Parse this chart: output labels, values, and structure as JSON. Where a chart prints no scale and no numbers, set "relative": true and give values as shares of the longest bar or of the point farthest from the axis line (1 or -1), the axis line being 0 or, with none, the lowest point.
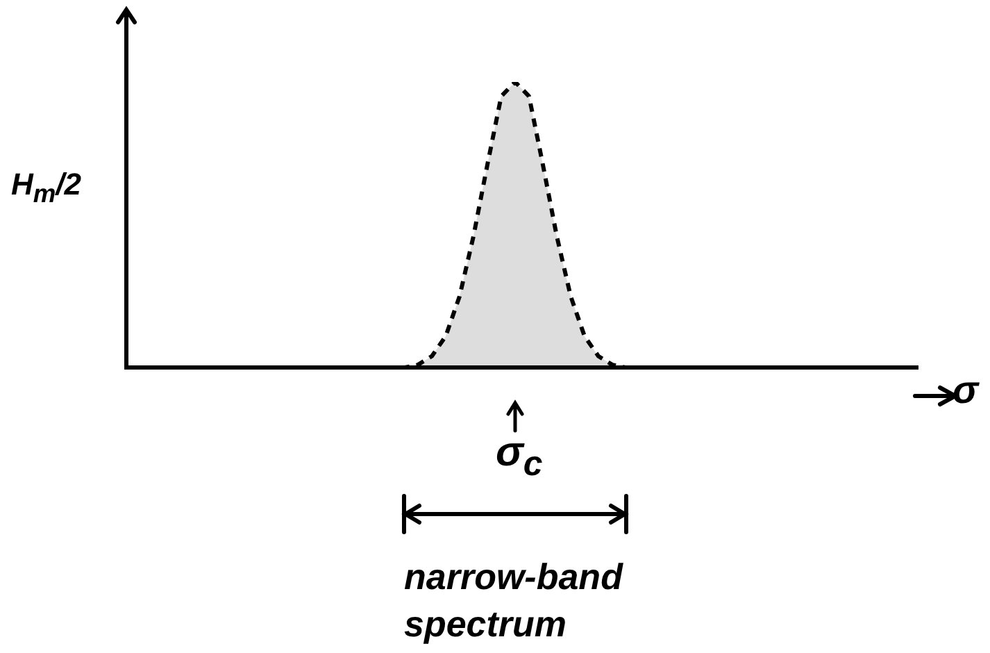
{
  "chart_data": {
    "type": "area",
    "relative": true,
    "marker": "none",
    "line_style": "dashed",
    "color": "#000000",
    "xlabel": "σ",
    "ylabel": "H$_{m}$/2",
    "annotations": [
      "σ$_{c}$",
      "narrow-band spectrum"
    ],
    "categories": [
      null,
      null,
      null,
      null,
      null,
      null,
      null,
      null,
      null,
      null,
      null,
      null,
      null,
      null,
      null,
      null,
      null,
      null,
      null,
      null,
      null,
      null,
      null,
      null,
      null,
      null,
      null,
      null,
      null,
      null,
      null,
      null,
      null,
      null,
      null,
      null,
      null,
      null,
      null,
      null,
      null,
      null,
      null,
      null,
      null,
      null,
      null,
      null,
      null,
      null,
      null,
      null,
      null,
      null,
      null,
      null,
      null,
      null
    ],
    "values": [
      0,
      0,
      0,
      0,
      0,
      0,
      0,
      0,
      0,
      0,
      0,
      0,
      0,
      0,
      0,
      0,
      0,
      0,
      0,
      0,
      0,
      0.01,
      0.04,
      0.11,
      0.25,
      0.46,
      0.71,
      0.95,
      1,
      0.95,
      0.71,
      0.46,
      0.25,
      0.11,
      0.04,
      0.01,
      0,
      0,
      0,
      0,
      0,
      0,
      0,
      0,
      0,
      0,
      0,
      0,
      0,
      0,
      0,
      0,
      0,
      0,
      0,
      0,
      0,
      0
    ]
  }
}
